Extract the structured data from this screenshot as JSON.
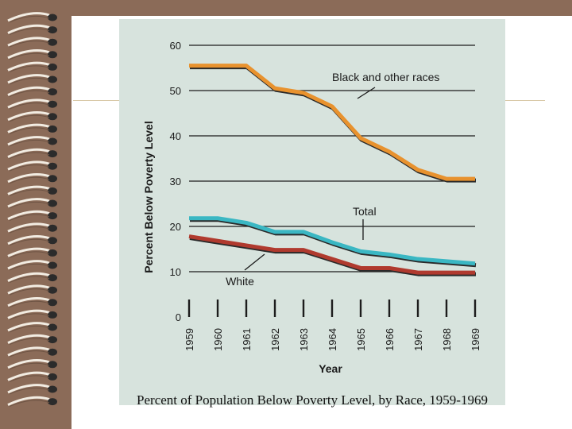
{
  "slide": {
    "background": "#8b6b58",
    "paper": "#ffffff",
    "caption": "Percent of Population Below Poverty Level, by Race, 1959-1969"
  },
  "chart_data": {
    "type": "line",
    "title": "Percent of Population Below Poverty Level, by Race, 1959-1969",
    "xlabel": "Year",
    "ylabel": "Percent Below Poverty Level",
    "categories": [
      "1959",
      "1960",
      "1961",
      "1962",
      "1963",
      "1964",
      "1965",
      "1966",
      "1967",
      "1968",
      "1969"
    ],
    "y_ticks": [
      0,
      10,
      20,
      30,
      40,
      50,
      60
    ],
    "ylim": [
      0,
      60
    ],
    "grid": true,
    "background": "#d7e3dd",
    "series": [
      {
        "name": "Black and other races",
        "color": "#e8922e",
        "x": [
          1959,
          1960,
          1961,
          1962,
          1963,
          1964,
          1965,
          1966,
          1967,
          1968,
          1969
        ],
        "values": [
          55.5,
          55.5,
          55.5,
          50.5,
          49.5,
          46.5,
          39.5,
          36.5,
          32.5,
          30.5,
          30.5
        ]
      },
      {
        "name": "Total",
        "color": "#3ab7c3",
        "x": [
          1959,
          1960,
          1961,
          1962,
          1963,
          1964,
          1965,
          1966,
          1967,
          1968,
          1969
        ],
        "values": [
          21.8,
          21.8,
          20.8,
          18.8,
          18.8,
          16.5,
          14.5,
          13.8,
          12.8,
          12.3,
          11.8
        ]
      },
      {
        "name": "White",
        "color": "#b03a2e",
        "x": [
          1959,
          1960,
          1961,
          1962,
          1963,
          1964,
          1965,
          1966,
          1967,
          1968,
          1969
        ],
        "values": [
          17.8,
          16.8,
          15.8,
          14.8,
          14.8,
          12.8,
          10.8,
          10.8,
          9.8,
          9.8,
          9.8
        ]
      }
    ],
    "annotations": [
      {
        "text": "Black and other races",
        "series": "Black and other races"
      },
      {
        "text": "Total",
        "series": "Total"
      },
      {
        "text": "White",
        "series": "White"
      }
    ]
  }
}
